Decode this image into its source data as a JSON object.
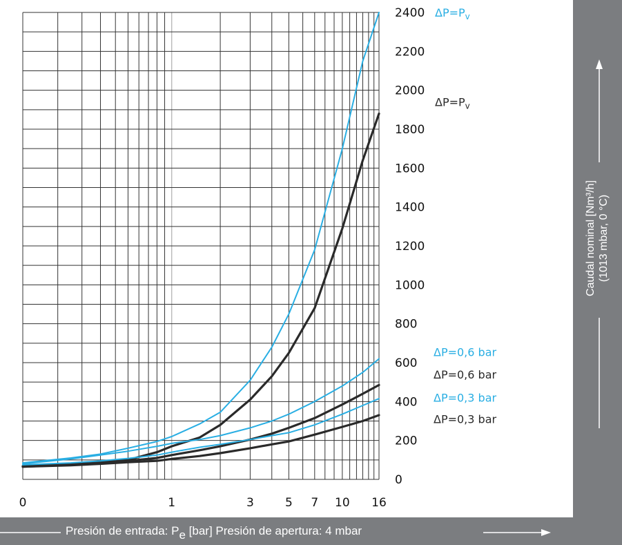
{
  "chart_data": {
    "type": "line",
    "x_scale": "log",
    "xlim": [
      0,
      16
    ],
    "ylim": [
      0,
      2400
    ],
    "grid": true,
    "xticks": [
      "0",
      "1",
      "3",
      "5",
      "7",
      "10",
      "16"
    ],
    "yticks": [
      "0",
      "200",
      "400",
      "600",
      "800",
      "1000",
      "1200",
      "1400",
      "1600",
      "1800",
      "2000",
      "2200",
      "2400"
    ],
    "xlabel": {
      "text": "Presión de entrada: P",
      "sub": "e",
      "suffix": " [bar] Presión de apertura: 4 mbar"
    },
    "ylabel": [
      "Caudal nominal [Nm³/h]",
      "(1013 mbar, 0 °C)"
    ],
    "colors": {
      "blue": "#29aee3",
      "black": "#2a2a2a",
      "panel": "#7b7d80"
    },
    "series": [
      {
        "name": "ΔP=P",
        "sub": "v",
        "color": "blue",
        "x": [
          0,
          0.15,
          0.3,
          0.5,
          0.8,
          1,
          1.5,
          2,
          3,
          4,
          5,
          7,
          10,
          13,
          16
        ],
        "y": [
          85,
          110,
          130,
          160,
          195,
          220,
          285,
          345,
          510,
          680,
          850,
          1180,
          1700,
          2150,
          2400
        ]
      },
      {
        "name": "ΔP=P",
        "sub": "v",
        "color": "black",
        "x": [
          0,
          0.15,
          0.3,
          0.5,
          0.8,
          1,
          1.5,
          2,
          3,
          4,
          5,
          7,
          10,
          13,
          16
        ],
        "y": [
          68,
          78,
          90,
          100,
          140,
          170,
          215,
          280,
          410,
          530,
          650,
          880,
          1290,
          1640,
          1880
        ]
      },
      {
        "name": "ΔP=0,6 bar",
        "color": "blue",
        "x": [
          0,
          0.15,
          0.3,
          0.5,
          0.8,
          1,
          1.5,
          2,
          3,
          4,
          5,
          7,
          10,
          13,
          16
        ],
        "y": [
          80,
          105,
          125,
          145,
          170,
          185,
          205,
          225,
          265,
          300,
          335,
          400,
          480,
          550,
          620
        ]
      },
      {
        "name": "ΔP=0,6 bar",
        "color": "black",
        "x": [
          0,
          0.15,
          0.3,
          0.5,
          0.8,
          1,
          1.5,
          2,
          3,
          4,
          5,
          7,
          10,
          13,
          16
        ],
        "y": [
          65,
          75,
          85,
          95,
          110,
          125,
          150,
          170,
          205,
          235,
          265,
          315,
          385,
          440,
          485
        ]
      },
      {
        "name": "ΔP=0,3 bar",
        "color": "blue",
        "x": [
          0,
          0.15,
          0.3,
          0.5,
          0.8,
          1,
          1.5,
          2,
          3,
          4,
          5,
          7,
          10,
          13,
          16
        ],
        "y": [
          75,
          85,
          95,
          108,
          125,
          140,
          165,
          180,
          205,
          225,
          240,
          280,
          335,
          380,
          415
        ]
      },
      {
        "name": "ΔP=0,3 bar",
        "color": "black",
        "x": [
          0,
          0.15,
          0.3,
          0.5,
          0.8,
          1,
          1.5,
          2,
          3,
          4,
          5,
          7,
          10,
          13,
          16
        ],
        "y": [
          65,
          72,
          80,
          88,
          95,
          105,
          120,
          135,
          160,
          180,
          195,
          230,
          270,
          300,
          330
        ]
      }
    ]
  }
}
